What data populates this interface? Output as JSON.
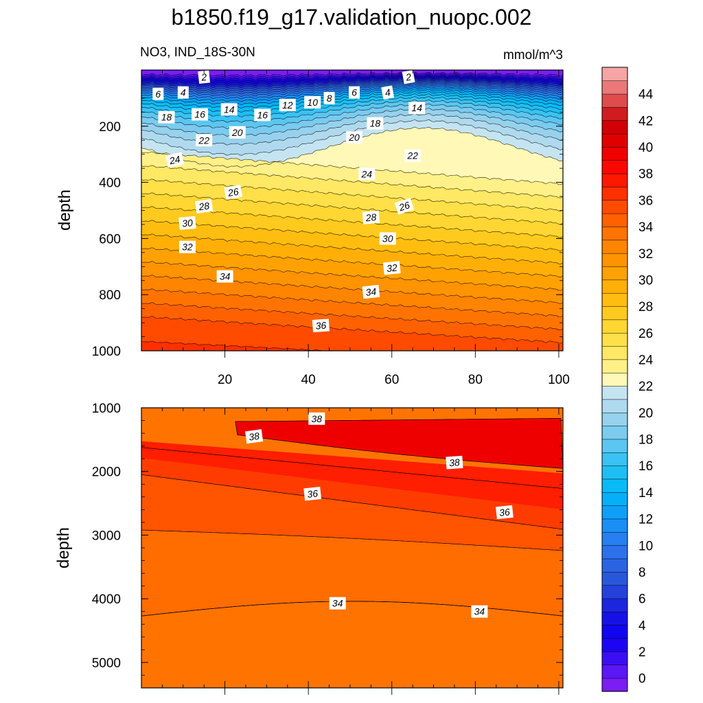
{
  "chart_data": {
    "type": "heatmap",
    "title": "b1850.f19_g17.validation_nuopc.002",
    "variable_label": "NO3, IND_18S-30N",
    "units_label": "mmol/m^3",
    "x_range": [
      0,
      101
    ],
    "upper_panel": {
      "ylabel": "depth",
      "ylim": [
        0,
        1000
      ],
      "y_ticks": [
        "200",
        "400",
        "600",
        "800",
        "1000"
      ],
      "x_ticks": [
        "20",
        "40",
        "60",
        "80",
        "100"
      ],
      "contour_labels": [
        "2",
        "4",
        "6",
        "8",
        "10",
        "12",
        "14",
        "16",
        "18",
        "20",
        "22",
        "24",
        "26",
        "28",
        "30",
        "32",
        "34",
        "36"
      ]
    },
    "lower_panel": {
      "ylabel": "depth",
      "ylim": [
        1000,
        5400
      ],
      "y_ticks": [
        "1000",
        "2000",
        "3000",
        "4000",
        "5000"
      ],
      "contour_labels": [
        "34",
        "36",
        "38"
      ]
    },
    "colorbar": {
      "levels": [
        "0",
        "2",
        "4",
        "6",
        "8",
        "10",
        "12",
        "14",
        "16",
        "18",
        "20",
        "22",
        "24",
        "26",
        "28",
        "30",
        "32",
        "34",
        "36",
        "38",
        "40",
        "42",
        "44"
      ],
      "min": -1,
      "max": 46,
      "step": 1
    }
  }
}
